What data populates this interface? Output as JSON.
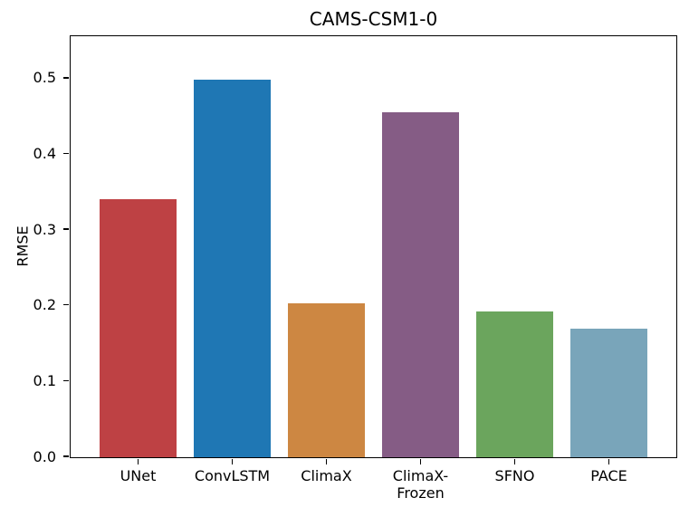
{
  "chart_data": {
    "type": "bar",
    "title": "CAMS-CSM1-0",
    "xlabel": "",
    "ylabel": "RMSE",
    "categories": [
      "UNet",
      "ConvLSTM",
      "ClimaX",
      "ClimaX-\nFrozen",
      "SFNO",
      "PACE"
    ],
    "values": [
      0.341,
      0.499,
      0.203,
      0.456,
      0.192,
      0.17
    ],
    "bar_colors": [
      "#be4144",
      "#1f77b4",
      "#cd8742",
      "#855c85",
      "#6ba55d",
      "#79a5ba"
    ],
    "yticks": [
      0.0,
      0.1,
      0.2,
      0.3,
      0.4,
      0.5
    ],
    "ytick_labels": [
      "0.0",
      "0.1",
      "0.2",
      "0.3",
      "0.4",
      "0.5"
    ],
    "ylim": [
      0,
      0.555
    ],
    "grid": false,
    "legend": "none",
    "background_color": "#ffffff",
    "spine_color": "#000000"
  }
}
